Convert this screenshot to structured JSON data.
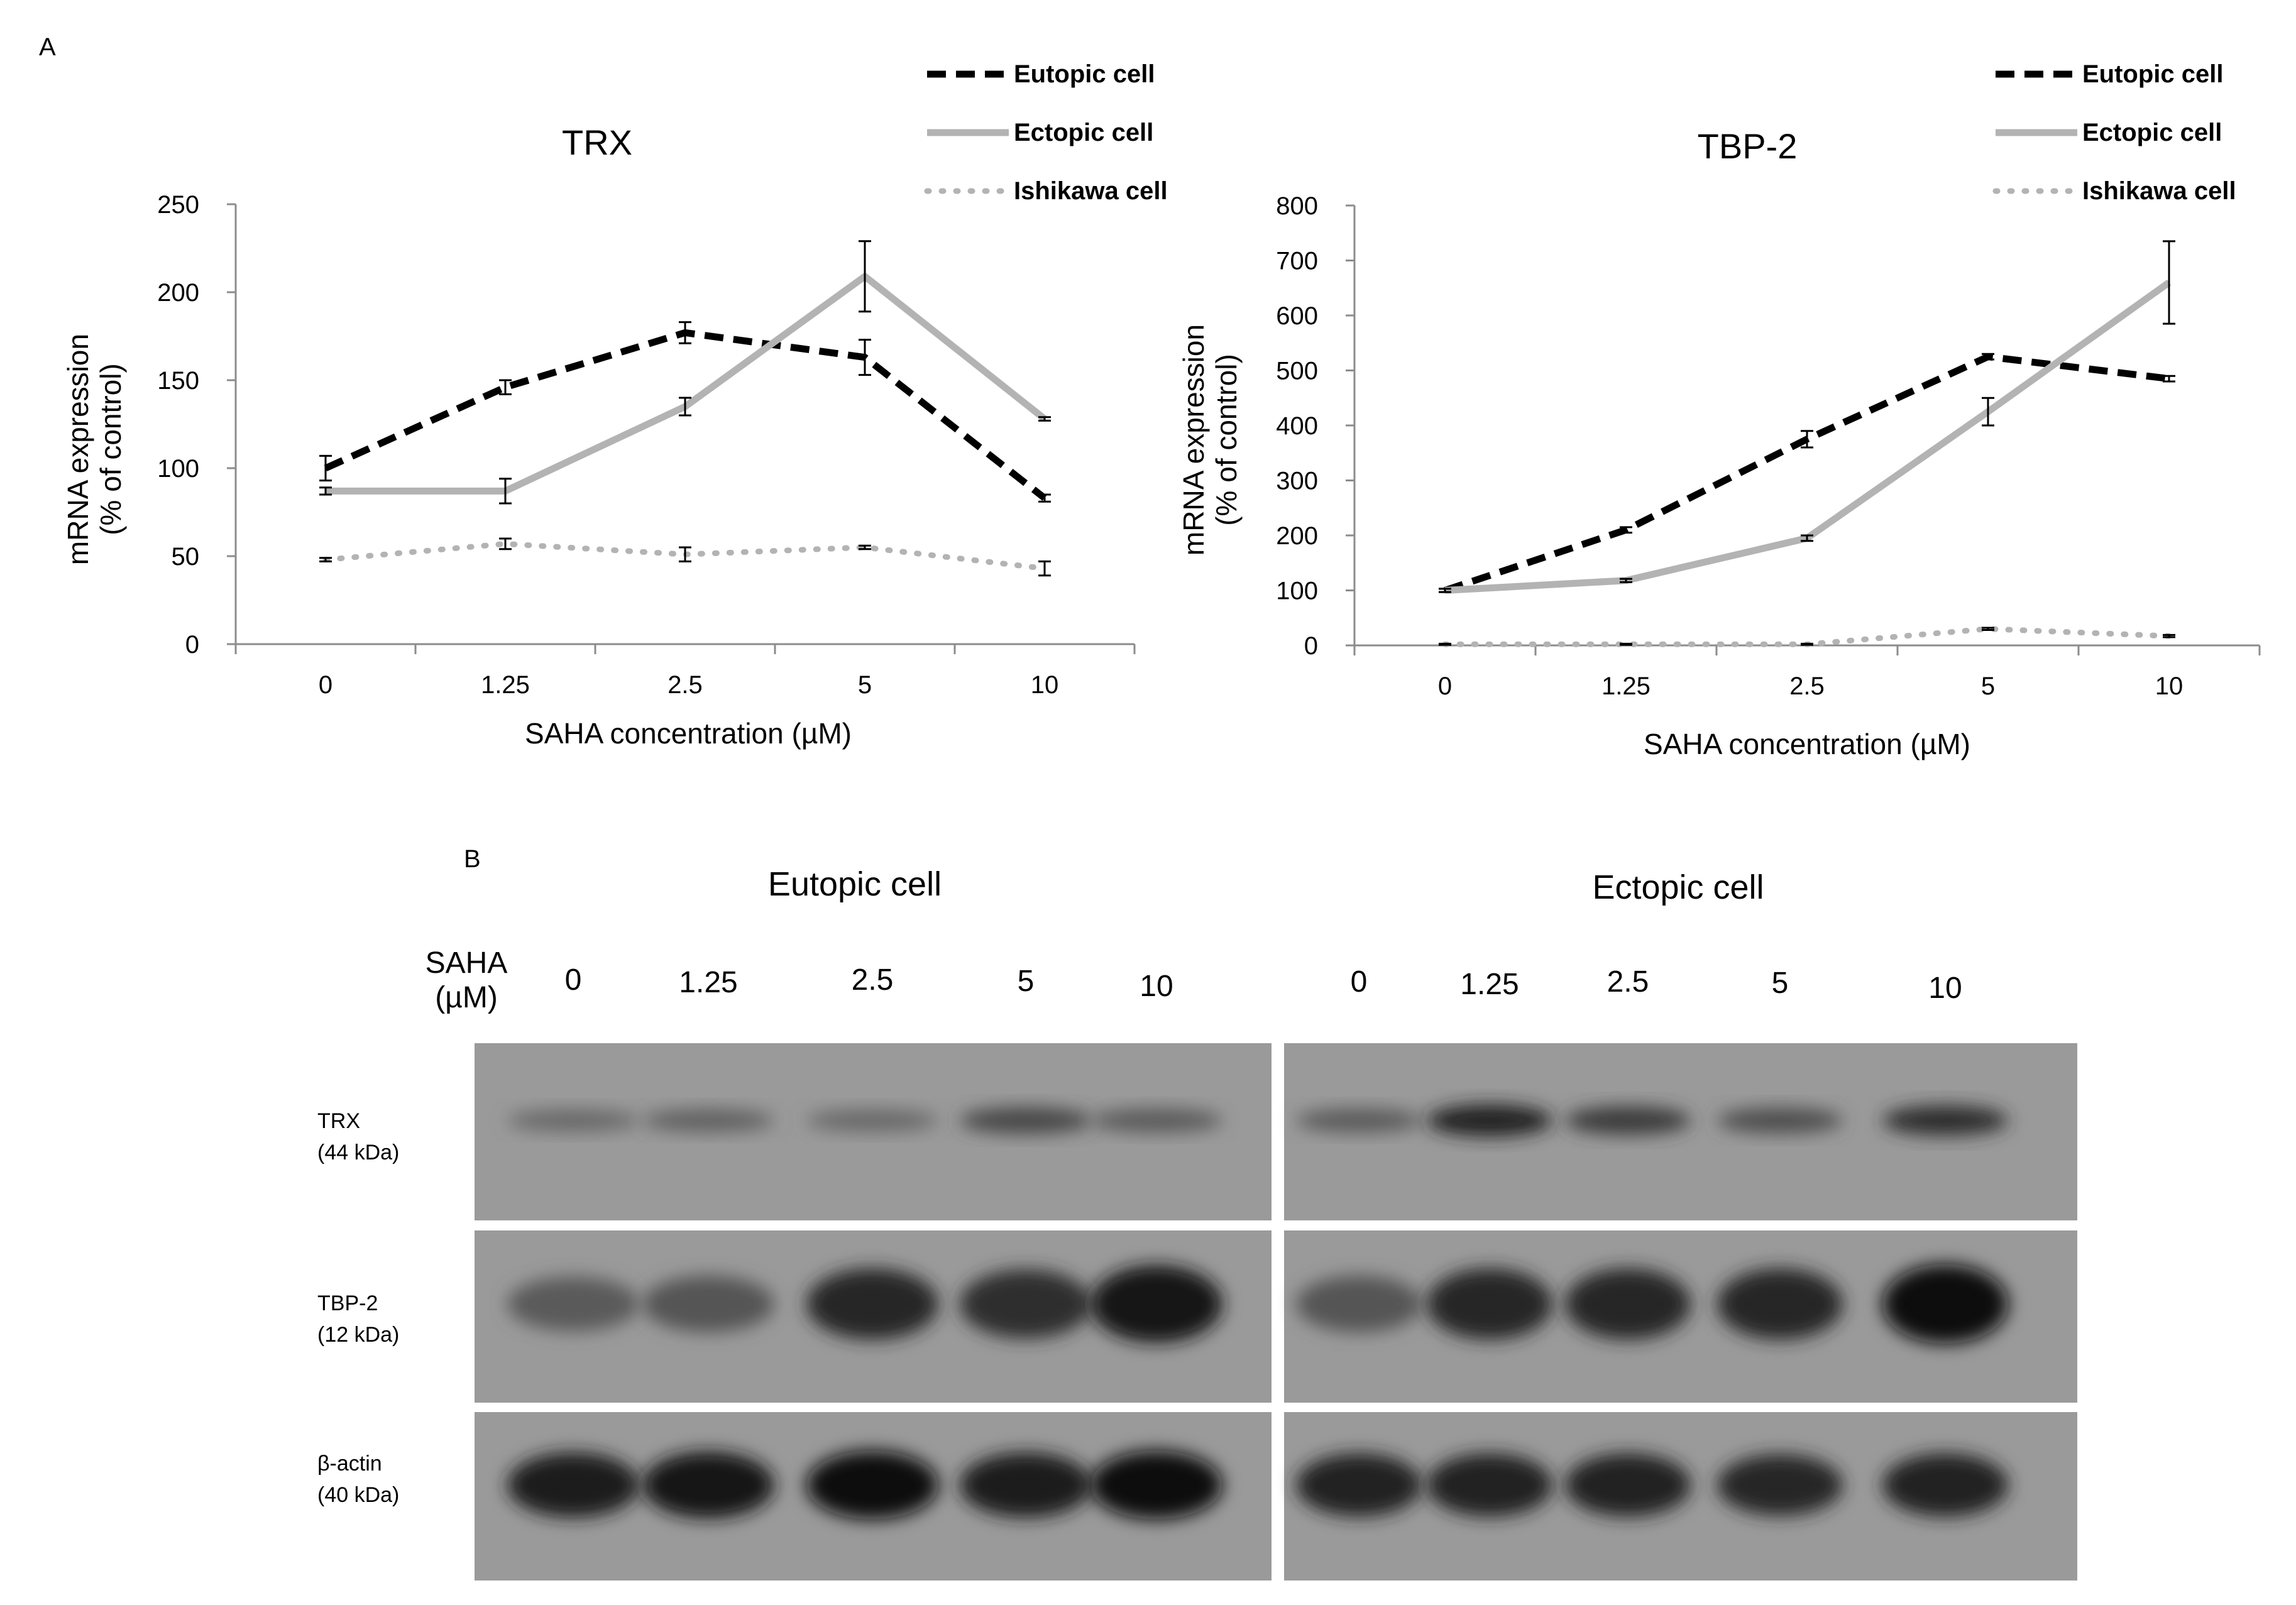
{
  "panel_a_label": "A",
  "panel_b_label": "B",
  "chart_data": [
    {
      "type": "line",
      "title": "TRX",
      "xlabel": "SAHA concentration  (µM)",
      "ylabel_line1": "mRNA expression",
      "ylabel_line2": "(% of control)",
      "categories": [
        "0",
        "1.25",
        "2.5",
        "5",
        "10"
      ],
      "ylim": [
        0,
        250
      ],
      "yticks": [
        0,
        50,
        100,
        150,
        200,
        250
      ],
      "grid": false,
      "legend_position": "top-right",
      "series": [
        {
          "name": "Eutopic cell",
          "style": "dashed",
          "color": "#000000",
          "values": [
            100,
            146,
            177,
            163,
            83
          ],
          "errors": [
            7,
            4,
            6,
            10,
            2
          ]
        },
        {
          "name": "Ectopic cell",
          "style": "solid",
          "color": "#b3b3b3",
          "values": [
            87,
            87,
            135,
            209,
            128
          ],
          "errors": [
            2,
            7,
            5,
            20,
            1
          ]
        },
        {
          "name": "Ishikawa cell",
          "style": "dotted",
          "color": "#b3b3b3",
          "values": [
            48,
            57,
            51,
            55,
            43
          ],
          "errors": [
            1,
            3,
            4,
            1,
            4
          ]
        }
      ]
    },
    {
      "type": "line",
      "title": "TBP-2",
      "xlabel": "SAHA concentration  (µM)",
      "ylabel_line1": "mRNA expression",
      "ylabel_line2": "(% of control)",
      "categories": [
        "0",
        "1.25",
        "2.5",
        "5",
        "10"
      ],
      "ylim": [
        0,
        800
      ],
      "yticks": [
        0,
        100,
        200,
        300,
        400,
        500,
        600,
        700,
        800
      ],
      "grid": false,
      "legend_position": "top-right",
      "series": [
        {
          "name": "Eutopic cell",
          "style": "dashed",
          "color": "#000000",
          "values": [
            100,
            210,
            375,
            525,
            485
          ],
          "errors": [
            3,
            5,
            15,
            5,
            5
          ]
        },
        {
          "name": "Ectopic cell",
          "style": "solid",
          "color": "#b3b3b3",
          "values": [
            100,
            118,
            195,
            425,
            660
          ],
          "errors": [
            3,
            3,
            5,
            25,
            75
          ]
        },
        {
          "name": "Ishikawa cell",
          "style": "dotted",
          "color": "#b3b3b3",
          "values": [
            2,
            2,
            2,
            30,
            17
          ],
          "errors": [
            1,
            1,
            1,
            2,
            2
          ]
        }
      ]
    }
  ],
  "blot": {
    "group_eutopic": "Eutopic cell",
    "group_ectopic": "Ectopic cell",
    "saha_label_line1": "SAHA",
    "saha_label_line2": "(µM)",
    "lanes_eutopic": [
      "0",
      "1.25",
      "2.5",
      "5",
      "10"
    ],
    "lanes_ectopic": [
      "0",
      "1.25",
      "2.5",
      "5",
      "10"
    ],
    "rows": [
      {
        "name_line1": "TRX",
        "name_line2": "(44 kDa)",
        "eutopic": [
          0.3,
          0.35,
          0.3,
          0.55,
          0.4
        ],
        "ectopic": [
          0.4,
          0.85,
          0.65,
          0.5,
          0.75
        ]
      },
      {
        "name_line1": "TBP-2",
        "name_line2": "(12 kDa)",
        "eutopic": [
          0.4,
          0.45,
          0.8,
          0.75,
          0.95
        ],
        "ectopic": [
          0.45,
          0.8,
          0.8,
          0.8,
          1.0
        ]
      },
      {
        "name_line1": "β-actin",
        "name_line2": "(40 kDa)",
        "eutopic": [
          0.9,
          0.95,
          1.0,
          0.9,
          1.0
        ],
        "ectopic": [
          0.85,
          0.85,
          0.85,
          0.8,
          0.85
        ]
      }
    ]
  }
}
